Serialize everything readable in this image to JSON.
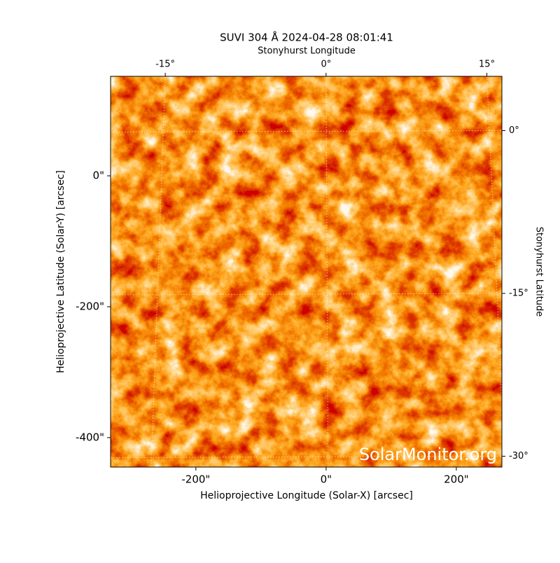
{
  "chart_data": {
    "type": "image",
    "title": "SUVI 304 Å 2024-04-28 08:01:41",
    "xlabel": "Helioprojective Longitude (Solar-X) [arcsec]",
    "ylabel": "Helioprojective Latitude (Solar-Y) [arcsec]",
    "x2label": "Stonyhurst Longitude",
    "y2label": "Stonyhurst Latitude",
    "watermark": "SolarMonitor.org",
    "xlim": [
      -331,
      270
    ],
    "ylim": [
      -445,
      152
    ],
    "xticks": [
      {
        "value": -200,
        "label": "-200\""
      },
      {
        "value": 0,
        "label": "0\""
      },
      {
        "value": 200,
        "label": "200\""
      }
    ],
    "yticks": [
      {
        "value": -400,
        "label": "-400\""
      },
      {
        "value": -200,
        "label": "-200\""
      },
      {
        "value": 0,
        "label": "0\""
      }
    ],
    "x2lim": [
      -20.1,
      16.4
    ],
    "x2ticks": [
      {
        "value": -15,
        "label": "-15°"
      },
      {
        "value": 0,
        "label": "0°"
      },
      {
        "value": 15,
        "label": "15°"
      }
    ],
    "y2lim": [
      -31,
      5
    ],
    "y2ticks": [
      {
        "value": -30,
        "label": "-30°"
      },
      {
        "value": -15,
        "label": "-15°"
      },
      {
        "value": 0,
        "label": "0°"
      }
    ],
    "grid": true
  }
}
